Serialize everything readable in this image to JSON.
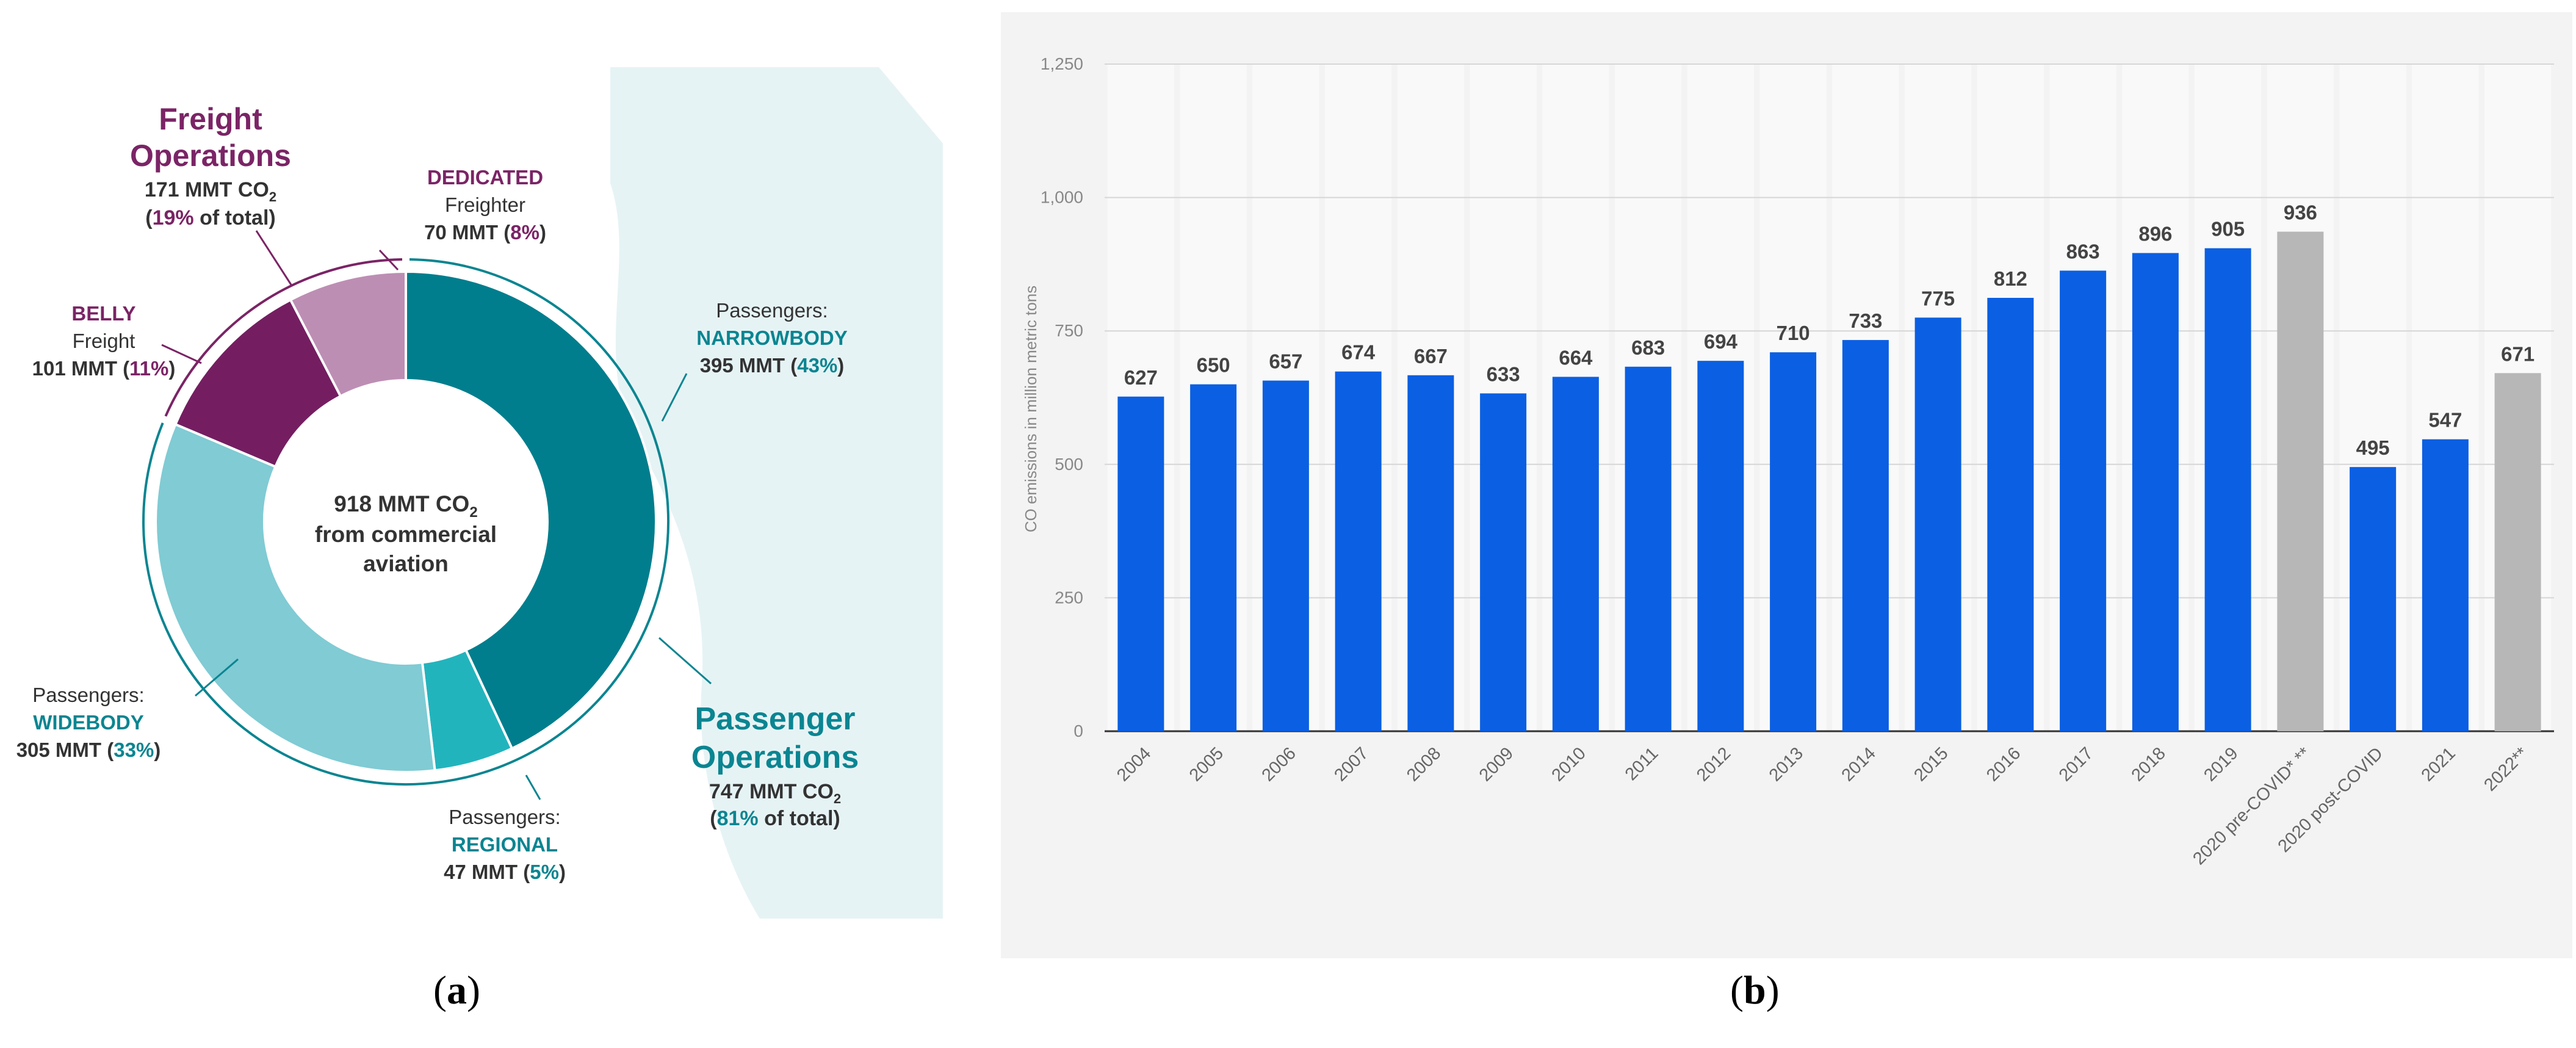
{
  "chart_data": [
    {
      "type": "pie",
      "center_label": {
        "line1": "918 MMT CO",
        "line1_sub": "2",
        "line2": "from commercial",
        "line3": "aviation"
      },
      "groups": [
        {
          "title_line1": "Freight",
          "title_line2": "Operations",
          "value_line": "171 MMT CO",
          "value_sub": "2",
          "share_open": "(",
          "share_pct": "19%",
          "share_close": " of total)",
          "color": "#7b2466"
        },
        {
          "title_line1": "Passenger",
          "title_line2": "Operations",
          "value_line": "747 MMT CO",
          "value_sub": "2",
          "share_open": "(",
          "share_pct": "81%",
          "share_close": " of total)",
          "color": "#0a8591"
        }
      ],
      "slices": [
        {
          "group": "passenger",
          "label_top": "Passengers:",
          "label_name": "NARROWBODY",
          "value": 395,
          "value_text": "395 MMT (",
          "pct": "43%",
          "close": ")",
          "color": "#007e8d"
        },
        {
          "group": "passenger",
          "label_top": "Passengers:",
          "label_name": "REGIONAL",
          "value": 47,
          "value_text": "47 MMT (",
          "pct": "5%",
          "close": ")",
          "color": "#22b4bd"
        },
        {
          "group": "passenger",
          "label_top": "Passengers:",
          "label_name": "WIDEBODY",
          "value": 305,
          "value_text": "305 MMT (",
          "pct": "33%",
          "close": ")",
          "color": "#80cbd4"
        },
        {
          "group": "freight",
          "label_top": "BELLY",
          "label_name": "Freight",
          "value": 101,
          "value_text": "101 MMT (",
          "pct": "11%",
          "close": ")",
          "color": "#741e61"
        },
        {
          "group": "freight",
          "label_top": "DEDICATED",
          "label_name": "Freighter",
          "value": 70,
          "value_text": "70 MMT (",
          "pct": "8%",
          "close": ")",
          "color": "#bd8eb4"
        }
      ]
    },
    {
      "type": "bar",
      "ylabel": "CO emissions in million metric tons",
      "ylim": [
        0,
        1250
      ],
      "yticks": [
        "0",
        "250",
        "500",
        "750",
        "1,000",
        "1,250"
      ],
      "ytick_values": [
        0,
        250,
        500,
        750,
        1000,
        1250
      ],
      "grid": true,
      "categories": [
        "2004",
        "2005",
        "2006",
        "2007",
        "2008",
        "2009",
        "2010",
        "2011",
        "2012",
        "2013",
        "2014",
        "2015",
        "2016",
        "2017",
        "2018",
        "2019",
        "2020 pre-COVID* **",
        "2020 post-COVID",
        "2021",
        "2022**"
      ],
      "values": [
        627,
        650,
        657,
        674,
        667,
        633,
        664,
        683,
        694,
        710,
        733,
        775,
        812,
        863,
        896,
        905,
        936,
        495,
        547,
        671
      ],
      "value_labels": [
        "627",
        "650",
        "657",
        "674",
        "667",
        "633",
        "664",
        "683",
        "694",
        "710",
        "733",
        "775",
        "812",
        "863",
        "896",
        "905",
        "936",
        "495",
        "547",
        "671"
      ],
      "bar_colors": [
        "#0b5fe2",
        "#0b5fe2",
        "#0b5fe2",
        "#0b5fe2",
        "#0b5fe2",
        "#0b5fe2",
        "#0b5fe2",
        "#0b5fe2",
        "#0b5fe2",
        "#0b5fe2",
        "#0b5fe2",
        "#0b5fe2",
        "#0b5fe2",
        "#0b5fe2",
        "#0b5fe2",
        "#0b5fe2",
        "#b7b7b7",
        "#0b5fe2",
        "#0b5fe2",
        "#b7b7b7"
      ]
    }
  ],
  "captions": {
    "a_open": "(",
    "a_letter": "a",
    "a_close": ")",
    "b_open": "(",
    "b_letter": "b",
    "b_close": ")"
  }
}
